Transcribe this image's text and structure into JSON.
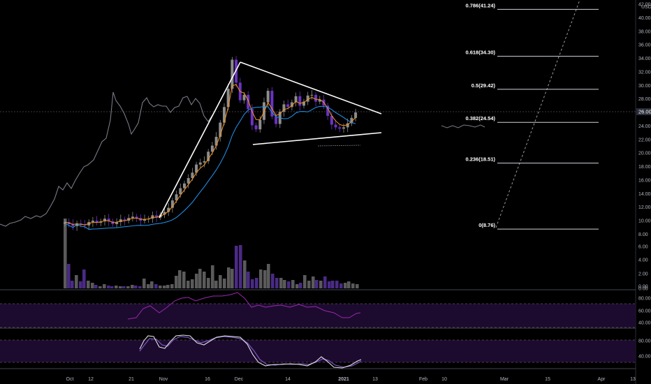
{
  "chart_data": {
    "type": "candlestick",
    "currency": "USD",
    "price_axis": {
      "ylim": [
        0,
        42
      ],
      "ticks": [
        "42.00",
        "40.00",
        "38.00",
        "36.00",
        "34.00",
        "32.00",
        "30.00",
        "28.00",
        "26.00",
        "24.00",
        "22.00",
        "20.00",
        "18.00",
        "16.00",
        "14.00",
        "12.00",
        "10.00",
        "8.00",
        "6.00",
        "4.00",
        "2.00",
        "0.00"
      ],
      "current_price_label": "26.00"
    },
    "time_axis": {
      "labels": [
        "Oct",
        "12",
        "21",
        "Nov",
        "16",
        "Dec",
        "14",
        "2021",
        "13",
        "Feb",
        "10",
        "Mar",
        "15",
        "Apr",
        "13"
      ]
    },
    "ohlc_close_estimates": [
      9.8,
      9.5,
      9.2,
      9.6,
      9.4,
      9.3,
      9.8,
      10.0,
      9.7,
      9.9,
      10.3,
      9.9,
      9.5,
      9.8,
      10.2,
      10.0,
      10.4,
      10.6,
      10.4,
      10.0,
      10.2,
      10.3,
      10.8,
      10.5,
      10.9,
      11.3,
      11.9,
      13.0,
      13.9,
      14.8,
      15.5,
      16.3,
      17.1,
      18.3,
      18.6,
      18.8,
      20.2,
      21.1,
      22.4,
      24.5,
      26.8,
      29.5,
      33.8,
      30.4,
      27.8,
      28.6,
      26.5,
      24.1,
      23.5,
      24.9,
      27.5,
      29.2,
      25.4,
      24.3,
      26.1,
      27.2,
      26.8,
      27.5,
      28.4,
      27.0,
      27.6,
      28.5,
      28.6,
      27.6,
      27.9,
      27.0,
      25.5,
      24.2,
      23.8,
      23.6,
      23.8,
      24.4,
      25.2,
      26.0
    ],
    "overlay_series": [
      {
        "color": "#787b86",
        "style": "comparison line"
      },
      {
        "color": "#f7931a",
        "style": "moving average (short)"
      },
      {
        "color": "#2196f3",
        "style": "moving average (long)"
      }
    ],
    "fibonacci": [
      {
        "label": "0.786(41.24)",
        "value": 41.24
      },
      {
        "label": "0.618(34.30)",
        "value": 34.3
      },
      {
        "label": "0.5(29.42)",
        "value": 29.42
      },
      {
        "label": "0.382(24.54)",
        "value": 24.54
      },
      {
        "label": "0.236(18.51)",
        "value": 18.51
      },
      {
        "label": "0(8.76)",
        "value": 8.76
      }
    ],
    "volume_axis_ticks": [
      "6.00",
      "4.00",
      "2.00",
      "0.00"
    ],
    "rsi_panel": {
      "ticks": [
        "80.00",
        "60.00",
        "40.00"
      ],
      "band": [
        30,
        70
      ]
    },
    "stoch_panel": {
      "ticks": [
        "80.00",
        "40.00"
      ],
      "band": [
        20,
        80
      ]
    }
  }
}
